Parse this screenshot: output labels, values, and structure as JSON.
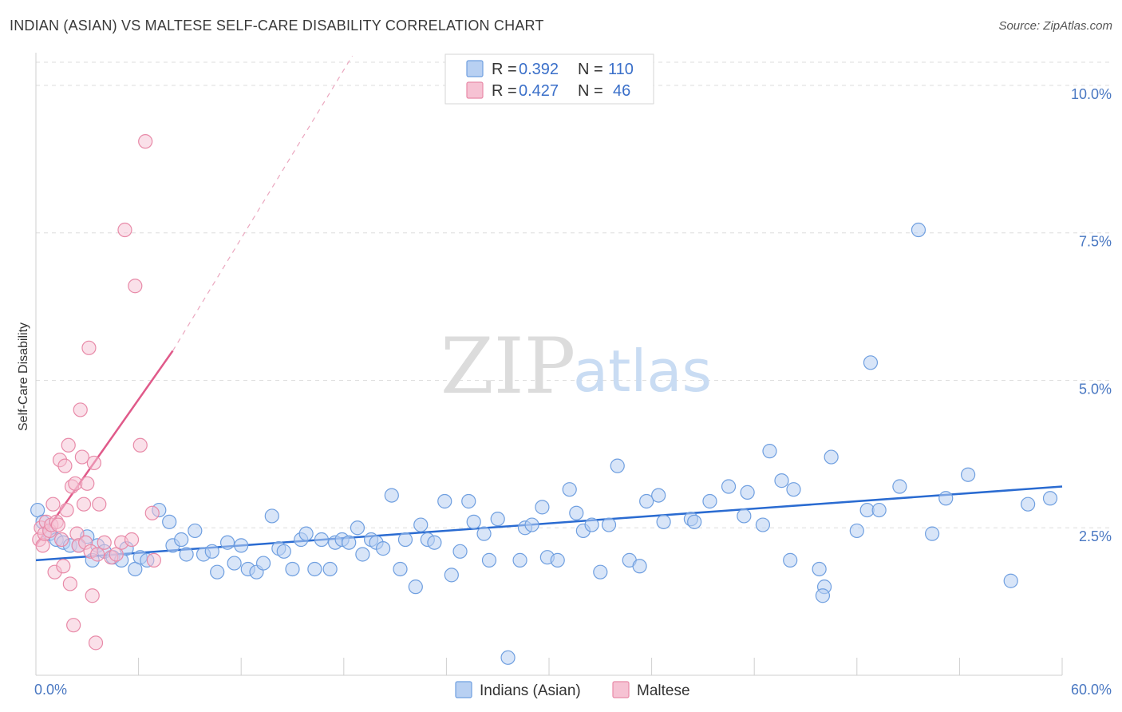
{
  "header": {
    "title": "INDIAN (ASIAN) VS MALTESE SELF-CARE DISABILITY CORRELATION CHART",
    "source": "Source: ZipAtlas.com"
  },
  "colors": {
    "blue": "#6f9fe0",
    "blue_fill": "#b8d0f2",
    "blue_line": "#2a6bd1",
    "pink": "#e88aa8",
    "pink_fill": "#f6c2d3",
    "pink_line": "#e05a8a",
    "tick_label": "#4a78c2"
  },
  "legend": {
    "rows": [
      {
        "r_label": "R =",
        "r_value": "0.392",
        "n_label": "N =",
        "n_value": "110"
      },
      {
        "r_label": "R =",
        "r_value": "0.427",
        "n_label": "N =",
        "n_value": "46"
      }
    ]
  },
  "watermark": {
    "zip": "ZIP",
    "atlas": "atlas"
  },
  "chart_data": {
    "type": "scatter",
    "xlabel": "",
    "ylabel": "Self-Care Disability",
    "xlim": [
      0,
      60
    ],
    "ylim": [
      0,
      10.5
    ],
    "x_tick_labels": [
      "0.0%",
      "60.0%"
    ],
    "y_ticks": [
      2.5,
      5.0,
      7.5,
      10.0
    ],
    "y_tick_labels": [
      "2.5%",
      "5.0%",
      "7.5%",
      "10.0%"
    ],
    "grid": "horizontal dashed",
    "legend_position": "top-center",
    "series": [
      {
        "name": "Indians (Asian)",
        "trend": {
          "x0": 0,
          "y0": 1.95,
          "x1": 60,
          "y1": 3.2,
          "style": "solid"
        },
        "points": [
          [
            0.1,
            2.8
          ],
          [
            0.4,
            2.6
          ],
          [
            0.8,
            2.4
          ],
          [
            1.2,
            2.3
          ],
          [
            1.6,
            2.25
          ],
          [
            2.0,
            2.2
          ],
          [
            2.5,
            2.2
          ],
          [
            3.0,
            2.35
          ],
          [
            3.3,
            1.95
          ],
          [
            3.6,
            2.2
          ],
          [
            4.0,
            2.1
          ],
          [
            4.5,
            2.0
          ],
          [
            5.0,
            1.95
          ],
          [
            5.3,
            2.15
          ],
          [
            5.8,
            1.8
          ],
          [
            6.1,
            2.0
          ],
          [
            6.5,
            1.95
          ],
          [
            7.2,
            2.8
          ],
          [
            7.8,
            2.6
          ],
          [
            8.0,
            2.2
          ],
          [
            8.5,
            2.3
          ],
          [
            8.8,
            2.05
          ],
          [
            9.3,
            2.45
          ],
          [
            9.8,
            2.05
          ],
          [
            10.3,
            2.1
          ],
          [
            10.6,
            1.75
          ],
          [
            11.2,
            2.25
          ],
          [
            11.6,
            1.9
          ],
          [
            12.0,
            2.2
          ],
          [
            12.4,
            1.8
          ],
          [
            12.9,
            1.75
          ],
          [
            13.3,
            1.9
          ],
          [
            13.8,
            2.7
          ],
          [
            14.2,
            2.15
          ],
          [
            14.5,
            2.1
          ],
          [
            15.0,
            1.8
          ],
          [
            15.5,
            2.3
          ],
          [
            15.8,
            2.4
          ],
          [
            16.3,
            1.8
          ],
          [
            16.7,
            2.3
          ],
          [
            17.2,
            1.8
          ],
          [
            17.5,
            2.25
          ],
          [
            17.9,
            2.3
          ],
          [
            18.3,
            2.25
          ],
          [
            18.8,
            2.5
          ],
          [
            19.1,
            2.05
          ],
          [
            19.6,
            2.3
          ],
          [
            19.9,
            2.25
          ],
          [
            20.3,
            2.15
          ],
          [
            20.8,
            3.05
          ],
          [
            21.3,
            1.8
          ],
          [
            21.6,
            2.3
          ],
          [
            22.2,
            1.5
          ],
          [
            22.5,
            2.55
          ],
          [
            22.9,
            2.3
          ],
          [
            23.3,
            2.25
          ],
          [
            23.9,
            2.95
          ],
          [
            24.3,
            1.7
          ],
          [
            24.8,
            2.1
          ],
          [
            25.3,
            2.95
          ],
          [
            25.6,
            2.6
          ],
          [
            26.2,
            2.4
          ],
          [
            26.5,
            1.95
          ],
          [
            27.0,
            2.65
          ],
          [
            27.6,
            0.3
          ],
          [
            28.3,
            1.95
          ],
          [
            28.6,
            2.5
          ],
          [
            29.0,
            2.55
          ],
          [
            29.6,
            2.85
          ],
          [
            29.9,
            2.0
          ],
          [
            30.5,
            1.95
          ],
          [
            31.2,
            3.15
          ],
          [
            31.6,
            2.75
          ],
          [
            32.0,
            2.45
          ],
          [
            32.5,
            2.55
          ],
          [
            33.0,
            1.75
          ],
          [
            33.5,
            2.55
          ],
          [
            34.0,
            3.55
          ],
          [
            34.7,
            1.95
          ],
          [
            35.3,
            1.85
          ],
          [
            35.7,
            2.95
          ],
          [
            36.4,
            3.05
          ],
          [
            36.7,
            2.6
          ],
          [
            38.3,
            2.65
          ],
          [
            38.5,
            2.6
          ],
          [
            39.4,
            2.95
          ],
          [
            40.5,
            3.2
          ],
          [
            41.4,
            2.7
          ],
          [
            41.6,
            3.1
          ],
          [
            42.5,
            2.55
          ],
          [
            42.9,
            3.8
          ],
          [
            43.6,
            3.3
          ],
          [
            44.1,
            1.95
          ],
          [
            44.3,
            3.15
          ],
          [
            45.8,
            1.8
          ],
          [
            46.1,
            1.5
          ],
          [
            46.0,
            1.35
          ],
          [
            46.5,
            3.7
          ],
          [
            48.0,
            2.45
          ],
          [
            48.6,
            2.8
          ],
          [
            48.8,
            5.3
          ],
          [
            49.3,
            2.8
          ],
          [
            50.5,
            3.2
          ],
          [
            51.6,
            7.55
          ],
          [
            52.4,
            2.4
          ],
          [
            53.2,
            3.0
          ],
          [
            54.5,
            3.4
          ],
          [
            57.0,
            1.6
          ],
          [
            58.0,
            2.9
          ],
          [
            59.3,
            3.0
          ]
        ]
      },
      {
        "name": "Maltese",
        "trend": {
          "x0": 0,
          "y0": 2.2,
          "x1": 8,
          "y1": 5.5,
          "style": "solid"
        },
        "trend_extension": {
          "x0": 8,
          "y0": 5.5,
          "x1": 18.5,
          "y1": 10.5,
          "style": "dashed"
        },
        "points": [
          [
            0.2,
            2.3
          ],
          [
            0.3,
            2.5
          ],
          [
            0.4,
            2.2
          ],
          [
            0.5,
            2.4
          ],
          [
            0.6,
            2.6
          ],
          [
            0.8,
            2.45
          ],
          [
            0.9,
            2.55
          ],
          [
            1.0,
            2.9
          ],
          [
            1.1,
            1.75
          ],
          [
            1.2,
            2.6
          ],
          [
            1.3,
            2.55
          ],
          [
            1.4,
            3.65
          ],
          [
            1.5,
            2.3
          ],
          [
            1.6,
            1.85
          ],
          [
            1.7,
            3.55
          ],
          [
            1.8,
            2.8
          ],
          [
            1.9,
            3.9
          ],
          [
            2.0,
            1.55
          ],
          [
            2.1,
            3.2
          ],
          [
            2.2,
            0.85
          ],
          [
            2.3,
            3.25
          ],
          [
            2.4,
            2.4
          ],
          [
            2.5,
            2.2
          ],
          [
            2.6,
            4.5
          ],
          [
            2.7,
            3.7
          ],
          [
            2.8,
            2.9
          ],
          [
            2.9,
            2.25
          ],
          [
            3.0,
            3.25
          ],
          [
            3.1,
            5.55
          ],
          [
            3.2,
            2.1
          ],
          [
            3.3,
            1.35
          ],
          [
            3.4,
            3.6
          ],
          [
            3.5,
            0.55
          ],
          [
            3.6,
            2.05
          ],
          [
            3.7,
            2.9
          ],
          [
            4.0,
            2.25
          ],
          [
            4.4,
            2.0
          ],
          [
            4.7,
            2.05
          ],
          [
            5.0,
            2.25
          ],
          [
            5.2,
            7.55
          ],
          [
            5.6,
            2.3
          ],
          [
            5.8,
            6.6
          ],
          [
            6.1,
            3.9
          ],
          [
            6.4,
            9.05
          ],
          [
            6.8,
            2.75
          ],
          [
            6.9,
            1.95
          ]
        ]
      }
    ]
  }
}
